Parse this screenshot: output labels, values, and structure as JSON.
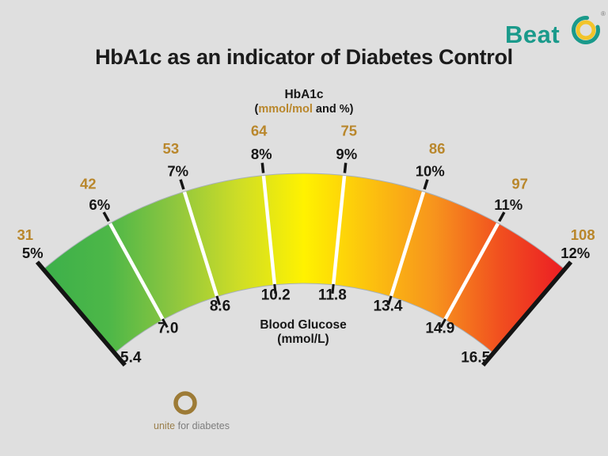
{
  "page": {
    "background": "#dfdfdf"
  },
  "brand": {
    "name": "Beat",
    "registered": "®",
    "teal": "#1a9a8b",
    "gold_ring": "#f2c42a"
  },
  "main": {
    "title": "HbA1c as an indicator of Diabetes Control"
  },
  "top_axis": {
    "title": "HbA1c",
    "unit_pre": "(",
    "unit_gold": "mmol/mol",
    "unit_rest": " and %)"
  },
  "bottom_axis": {
    "title": "Blood Glucose",
    "unit": "(mmol/L)"
  },
  "footer": {
    "brand_word": "unite",
    "rest": "for diabetes",
    "ring_color": "#9d7b36"
  },
  "chart_data": {
    "type": "gauge",
    "title": "HbA1c as an indicator of Diabetes Control",
    "top_axis_label": "HbA1c (mmol/mol and %)",
    "bottom_axis_label": "Blood Glucose (mmol/L)",
    "series": [
      {
        "name": "HbA1c (mmol/mol)",
        "values": [
          "31",
          "42",
          "53",
          "64",
          "75",
          "86",
          "97",
          "108"
        ]
      },
      {
        "name": "HbA1c (%)",
        "values": [
          "5%",
          "6%",
          "7%",
          "8%",
          "9%",
          "10%",
          "11%",
          "12%"
        ]
      },
      {
        "name": "Blood Glucose (mmol/L)",
        "values": [
          "5.4",
          "7.0",
          "8.6",
          "10.2",
          "11.8",
          "13.4",
          "14.9",
          "16.5"
        ]
      }
    ],
    "arc_span_degrees": 80.8,
    "gradient": [
      "#3cb04a",
      "#4db748",
      "#8dc63f",
      "#cedd26",
      "#fff200",
      "#fcc20e",
      "#f7941d",
      "#f1501f",
      "#ec1c24"
    ],
    "label_colors": {
      "mmolmol": "#b9872c",
      "percent": "#161616",
      "glucose": "#161616"
    }
  }
}
